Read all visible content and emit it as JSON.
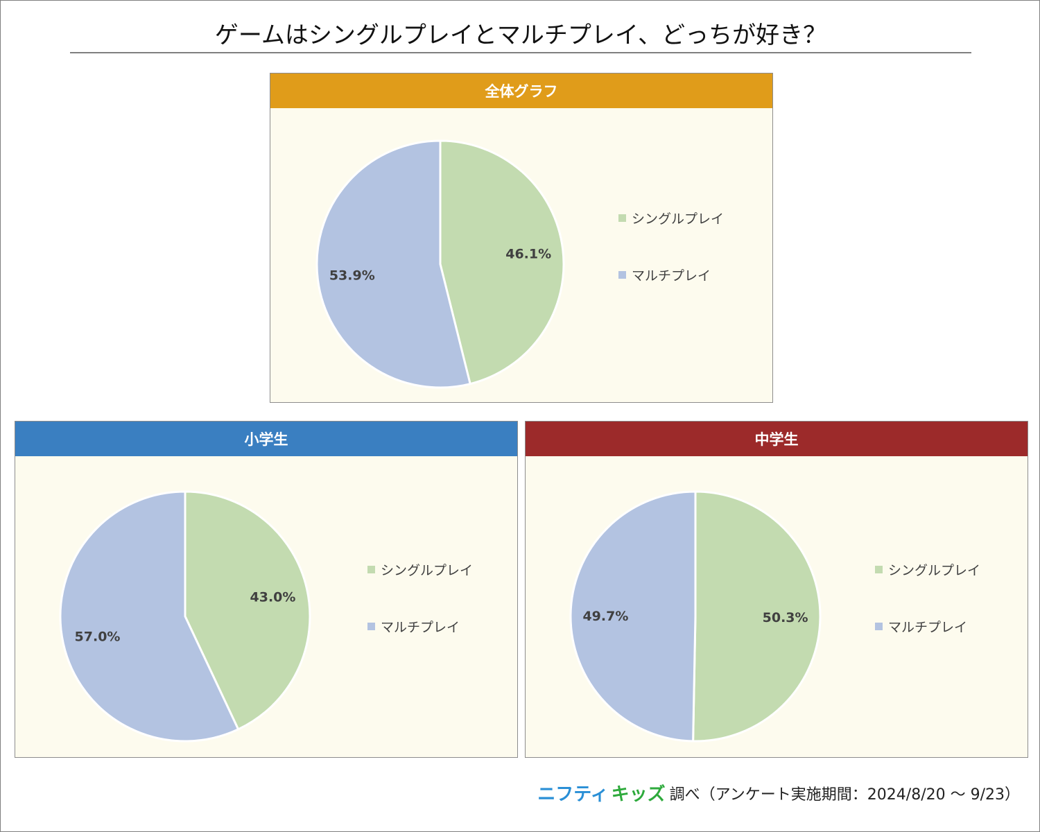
{
  "title": "ゲームはシングルプレイとマルチプレイ、どっちが好き？",
  "colors": {
    "single": "#c3dbb0",
    "multi": "#b3c3e1",
    "header_overall": "#e09c1a",
    "header_elementary": "#3a7fc1",
    "header_junior": "#9c2a2a",
    "panel_bg": "#fdfbee"
  },
  "chart_data": [
    {
      "type": "pie",
      "title": "全体グラフ",
      "categories": [
        "シングルプレイ",
        "マルチプレイ"
      ],
      "values": [
        46.1,
        53.9
      ],
      "labels": [
        "46.1%",
        "53.9%"
      ],
      "legend": "right"
    },
    {
      "type": "pie",
      "title": "小学生",
      "categories": [
        "シングルプレイ",
        "マルチプレイ"
      ],
      "values": [
        43.0,
        57.0
      ],
      "labels": [
        "43.0%",
        "57.0%"
      ],
      "legend": "right"
    },
    {
      "type": "pie",
      "title": "中学生",
      "categories": [
        "シングルプレイ",
        "マルチプレイ"
      ],
      "values": [
        50.3,
        49.7
      ],
      "labels": [
        "50.3%",
        "49.7%"
      ],
      "legend": "right"
    }
  ],
  "footer": {
    "brand_part1": "ニフティ",
    "brand_part2": "キッズ",
    "text": "調べ（アンケート実施期間：2024/8/20 ～ 9/23）"
  }
}
